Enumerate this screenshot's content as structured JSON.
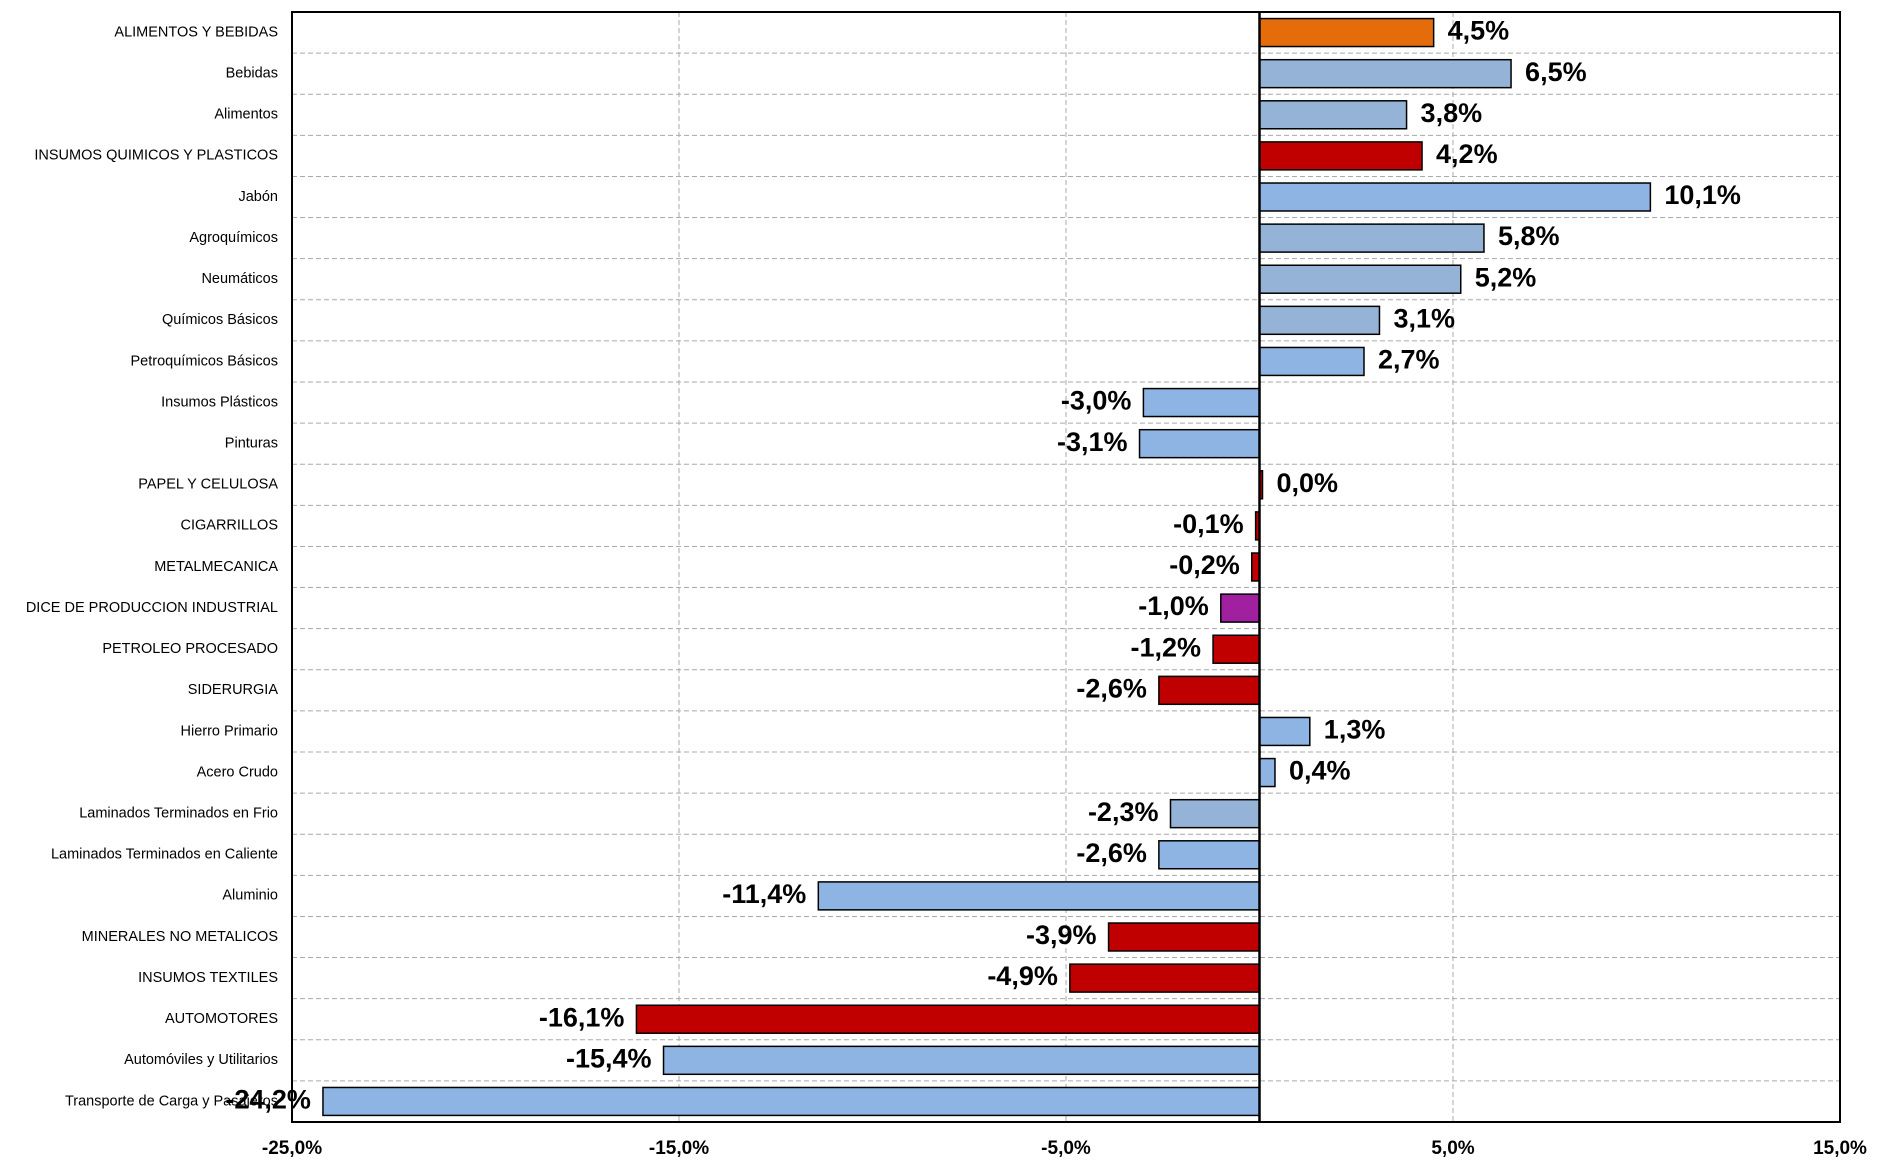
{
  "chart_data": {
    "type": "bar",
    "orientation": "horizontal",
    "categories": [
      "ALIMENTOS Y BEBIDAS",
      "Bebidas",
      "Alimentos",
      "INSUMOS QUIMICOS Y PLASTICOS",
      "Jabón",
      "Agroquímicos",
      "Neumáticos",
      "Químicos Básicos",
      "Petroquímicos Básicos",
      "Insumos Plásticos",
      "Pinturas",
      "PAPEL Y CELULOSA",
      "CIGARRILLOS",
      "METALMECANICA",
      "DICE DE PRODUCCION INDUSTRIAL",
      "PETROLEO PROCESADO",
      "SIDERURGIA",
      "Hierro Primario",
      "Acero Crudo",
      "Laminados Terminados  en Frio",
      "Laminados Terminados  en Caliente",
      "Aluminio",
      "MINERALES NO METALICOS",
      "INSUMOS TEXTILES",
      "AUTOMOTORES",
      "Automóviles y Utilitarios",
      "Transporte de Carga y Pasajeros"
    ],
    "values": [
      4.5,
      6.5,
      3.8,
      4.2,
      10.1,
      5.8,
      5.2,
      3.1,
      2.7,
      -3.0,
      -3.1,
      0.0,
      -0.1,
      -0.2,
      -1.0,
      -1.2,
      -2.6,
      1.3,
      0.4,
      -2.3,
      -2.6,
      -11.4,
      -3.9,
      -4.9,
      -16.1,
      -15.4,
      -24.2
    ],
    "value_labels": [
      "4,5%",
      "6,5%",
      "3,8%",
      "4,2%",
      "10,1%",
      "5,8%",
      "5,2%",
      "3,1%",
      "2,7%",
      "-3,0%",
      "-3,1%",
      "0,0%",
      "-0,1%",
      "-0,2%",
      "-1,0%",
      "-1,2%",
      "-2,6%",
      "1,3%",
      "0,4%",
      "-2,3%",
      "-2,6%",
      "-11,4%",
      "-3,9%",
      "-4,9%",
      "-16,1%",
      "-15,4%",
      "-24,2%"
    ],
    "colors": [
      "#e46c0a",
      "#95b3d7",
      "#95b3d7",
      "#c00000",
      "#8db4e2",
      "#95b3d7",
      "#95b3d7",
      "#95b3d7",
      "#8db4e2",
      "#8db4e2",
      "#8db4e2",
      "#c00000",
      "#c00000",
      "#c00000",
      "#a020a0",
      "#c00000",
      "#c00000",
      "#8db4e2",
      "#8db4e2",
      "#95b3d7",
      "#8db4e2",
      "#8db4e2",
      "#c00000",
      "#c00000",
      "#c00000",
      "#8db4e2",
      "#8db4e2"
    ],
    "xlim": [
      -25,
      15
    ],
    "xticks": [
      {
        "value": -25,
        "label": "-25,0%"
      },
      {
        "value": -15,
        "label": "-15,0%"
      },
      {
        "value": -5,
        "label": "-5,0%"
      },
      {
        "value": 5,
        "label": "5,0%"
      },
      {
        "value": 15,
        "label": "15,0%"
      }
    ],
    "grid": true
  }
}
